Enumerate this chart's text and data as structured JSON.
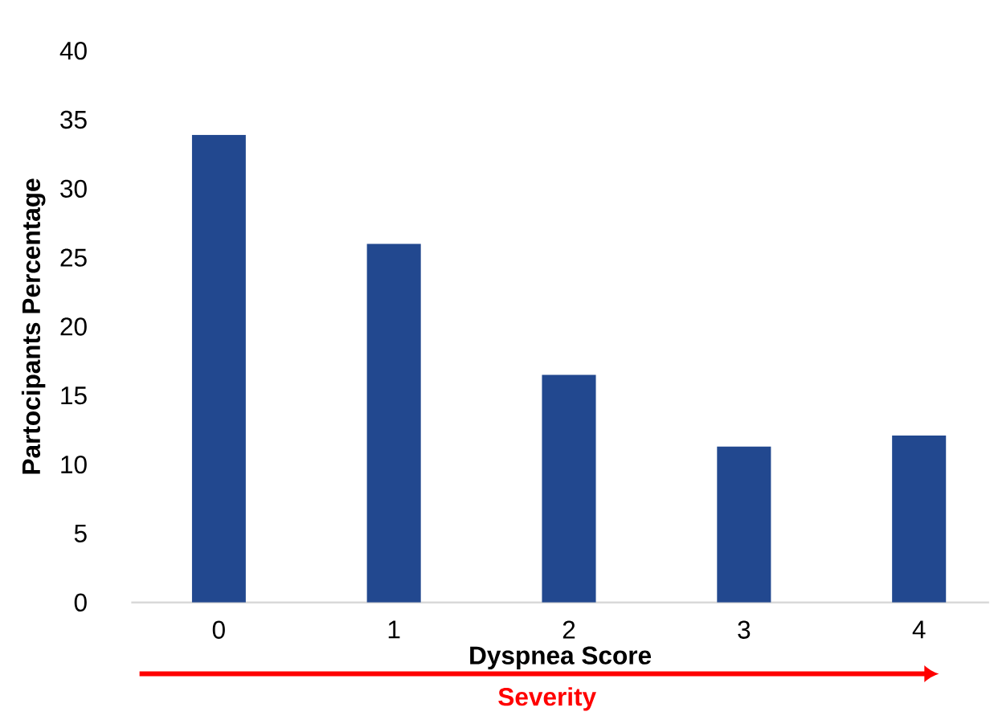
{
  "chart_data": {
    "type": "bar",
    "xlabel": "Dyspnea Score",
    "ylabel": "Partocipants Percentage",
    "categories": [
      "0",
      "1",
      "2",
      "3",
      "4"
    ],
    "values": [
      33.9,
      26.0,
      16.5,
      11.3,
      12.1
    ],
    "color": "#22488f",
    "ylim": [
      0,
      40
    ],
    "yticks": [
      0,
      5,
      10,
      15,
      20,
      25,
      30,
      35,
      40
    ],
    "annotations": [
      "Severity"
    ]
  }
}
